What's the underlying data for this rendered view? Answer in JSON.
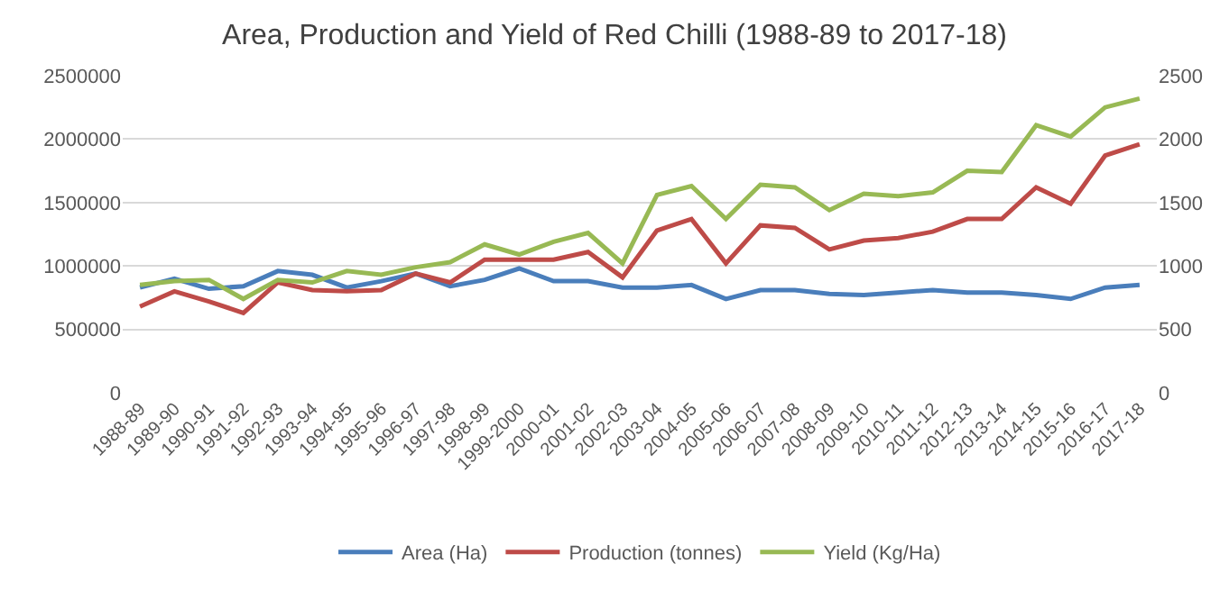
{
  "chart_data": {
    "type": "line",
    "title": "Area, Production and Yield of Red Chilli (1988-89 to 2017-18)",
    "categories": [
      "1988-89",
      "1989-90",
      "1990-91",
      "1991-92",
      "1992-93",
      "1993-94",
      "1994-95",
      "1995-96",
      "1996-97",
      "1997-98",
      "1998-99",
      "1999-2000",
      "2000-01",
      "2001-02",
      "2002-03",
      "2003-04",
      "2004-05",
      "2005-06",
      "2006-07",
      "2007-08",
      "2008-09",
      "2009-10",
      "2010-11",
      "2011-12",
      "2012-13",
      "2013-14",
      "2014-15",
      "2015-16",
      "2016-17",
      "2017-18"
    ],
    "series": [
      {
        "name": "Area (Ha)",
        "color": "#4a7ebb",
        "values": [
          830000,
          900000,
          820000,
          840000,
          960000,
          930000,
          830000,
          880000,
          940000,
          840000,
          890000,
          980000,
          880000,
          880000,
          830000,
          830000,
          850000,
          740000,
          810000,
          810000,
          780000,
          770000,
          790000,
          810000,
          790000,
          790000,
          770000,
          740000,
          830000,
          850000
        ]
      },
      {
        "name": "Production (tonnes)",
        "color": "#be4b48",
        "values": [
          680000,
          800000,
          720000,
          630000,
          870000,
          810000,
          800000,
          810000,
          940000,
          870000,
          1050000,
          1050000,
          1050000,
          1110000,
          910000,
          1280000,
          1370000,
          1020000,
          1320000,
          1300000,
          1130000,
          1200000,
          1220000,
          1270000,
          1370000,
          1370000,
          1620000,
          1490000,
          1870000,
          1960000
        ]
      },
      {
        "name": "Yield (Kg/Ha)",
        "color": "#98b954",
        "axis": "y2",
        "values": [
          850,
          880,
          890,
          740,
          890,
          870,
          960,
          930,
          990,
          1030,
          1170,
          1090,
          1190,
          1260,
          1020,
          1560,
          1630,
          1370,
          1640,
          1620,
          1440,
          1570,
          1550,
          1580,
          1750,
          1740,
          2110,
          2020,
          2250,
          2320
        ]
      }
    ],
    "ylim": [
      0,
      2500000
    ],
    "yticks": [
      0,
      500000,
      1000000,
      1500000,
      2000000,
      2500000
    ],
    "y2lim": [
      0,
      2500
    ],
    "y2ticks": [
      0,
      500,
      1000,
      1500,
      2000,
      2500
    ],
    "grid": "y",
    "legend": "bottom",
    "marker": "none",
    "line_style": "solid"
  }
}
